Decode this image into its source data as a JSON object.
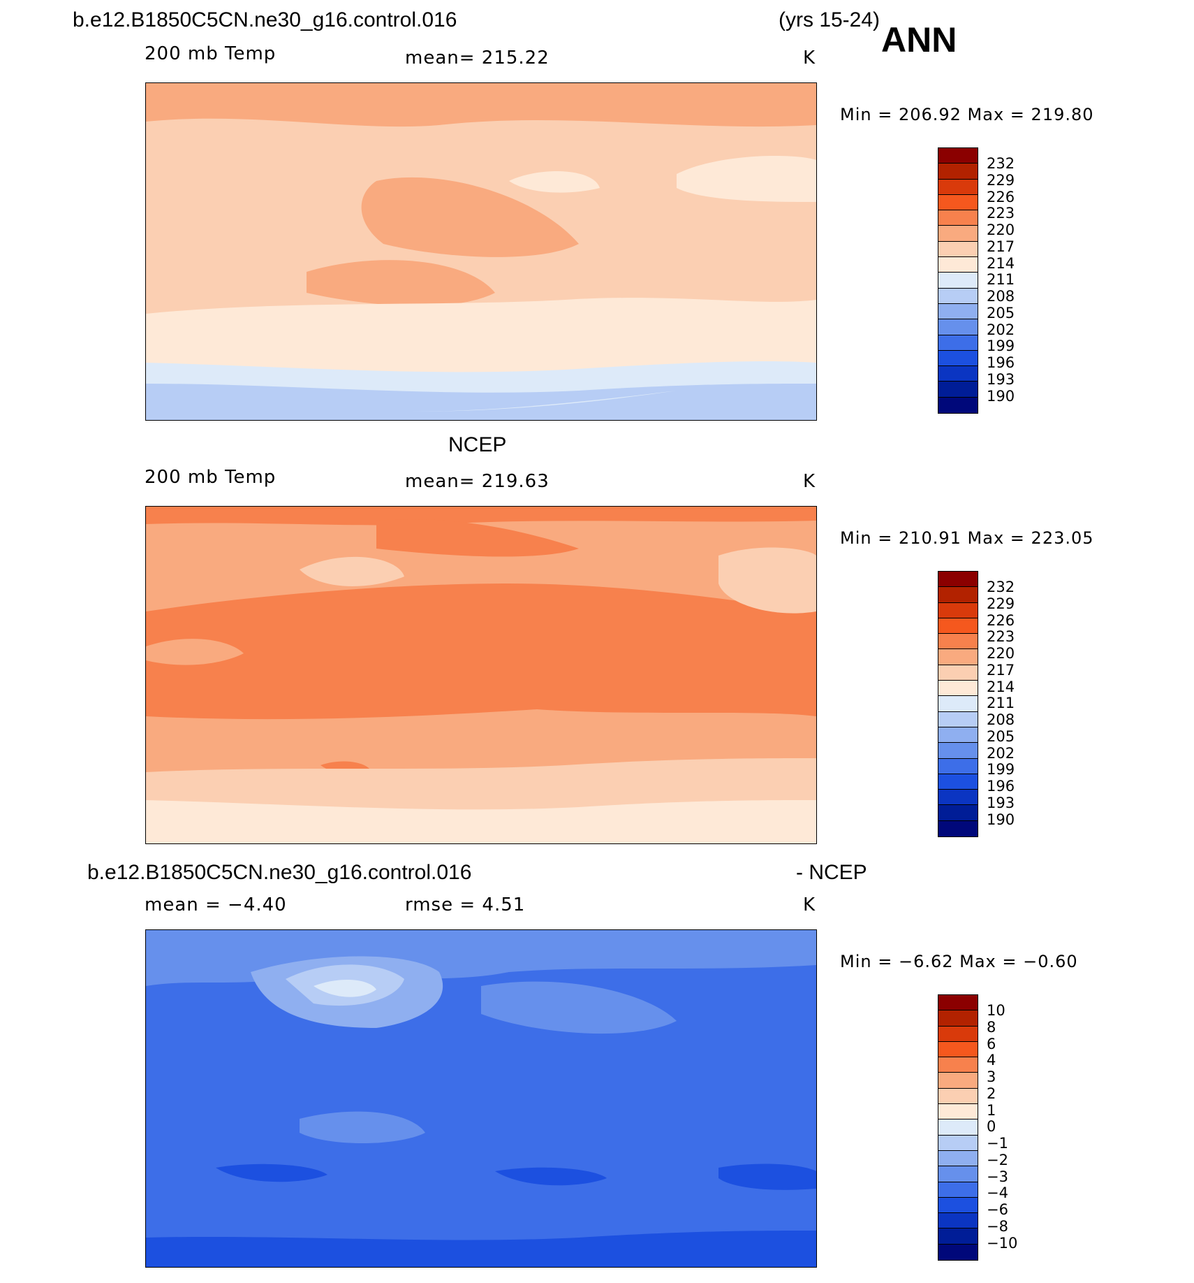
{
  "header": {
    "case_name": "b.e12.B1850C5CN.ne30_g16.control.016",
    "years": "(yrs 15-24)",
    "season": "ANN"
  },
  "panels": [
    {
      "title": "",
      "variable": "200 mb Temp",
      "stat1": "mean=  215.22",
      "stat2": "",
      "units": "K",
      "minmax": "Min  =  206.92  Max  =  219.80",
      "min": 206.92,
      "max": 219.8
    },
    {
      "title": "NCEP",
      "variable": "200 mb Temp",
      "stat1": "mean=  219.63",
      "stat2": "",
      "units": "K",
      "minmax": "Min  =  210.91  Max  =  223.05",
      "min": 210.91,
      "max": 223.05
    },
    {
      "title_left": "b.e12.B1850C5CN.ne30_g16.control.016",
      "title_right": "- NCEP",
      "variable": "",
      "stat1": "mean  =    −4.40",
      "stat2": "rmse  =     4.51",
      "units": "K",
      "minmax": "Min  =   −6.62  Max  =   −0.60",
      "min": -6.62,
      "max": -0.6
    }
  ],
  "colorbar_abs": {
    "colors": [
      "#8b0000",
      "#b22200",
      "#d93a0b",
      "#f5581e",
      "#f7814d",
      "#f9aa7f",
      "#fbcfb2",
      "#fee9d7",
      "#ddeaf9",
      "#b7cdf5",
      "#8faff0",
      "#6690ec",
      "#3d6ee8",
      "#1c50e0",
      "#0b35c2",
      "#001d97",
      "#00087a"
    ],
    "labels": [
      "232",
      "229",
      "226",
      "223",
      "220",
      "217",
      "214",
      "211",
      "208",
      "205",
      "202",
      "199",
      "196",
      "193",
      "190"
    ]
  },
  "colorbar_diff": {
    "colors": [
      "#8b0000",
      "#b22200",
      "#d93a0b",
      "#f5581e",
      "#f7814d",
      "#f9aa7f",
      "#fbcfb2",
      "#fee9d7",
      "#ddeaf9",
      "#b7cdf5",
      "#8faff0",
      "#6690ec",
      "#3d6ee8",
      "#1c50e0",
      "#0b35c2",
      "#001d97",
      "#00087a"
    ],
    "labels": [
      "10",
      "8",
      "6",
      "4",
      "3",
      "2",
      "1",
      "0",
      "−1",
      "−2",
      "−3",
      "−4",
      "−6",
      "−8",
      "−10"
    ]
  }
}
